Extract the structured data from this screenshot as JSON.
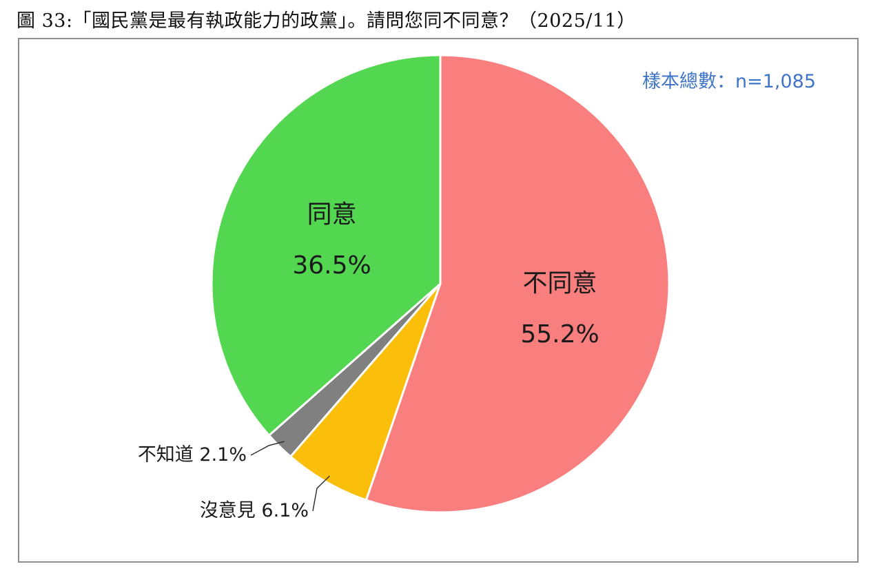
{
  "header": {
    "figure_title": "圖 33:「國民黨是最有執政能力的政黨」。請問您同不同意？（2025/11）"
  },
  "chart_data": {
    "type": "pie",
    "title": "圖 33:「國民黨是最有執政能力的政黨」。請問您同不同意？（2025/11）",
    "sample_note": "樣本總數：n=1,085",
    "start_angle_deg": 0,
    "direction": "clockwise",
    "slices": [
      {
        "name": "不同意",
        "value": 55.2,
        "label": "55.2%",
        "color": "#f97f7f",
        "label_style": "inside"
      },
      {
        "name": "沒意見",
        "value": 6.1,
        "label": "沒意見 6.1%",
        "color": "#fbbf0b",
        "label_style": "outside"
      },
      {
        "name": "不知道",
        "value": 2.1,
        "label": "不知道 2.1%",
        "color": "#808080",
        "label_style": "outside"
      },
      {
        "name": "同意",
        "value": 36.5,
        "label": "36.5%",
        "color": "#53d650",
        "label_style": "inside"
      }
    ]
  }
}
